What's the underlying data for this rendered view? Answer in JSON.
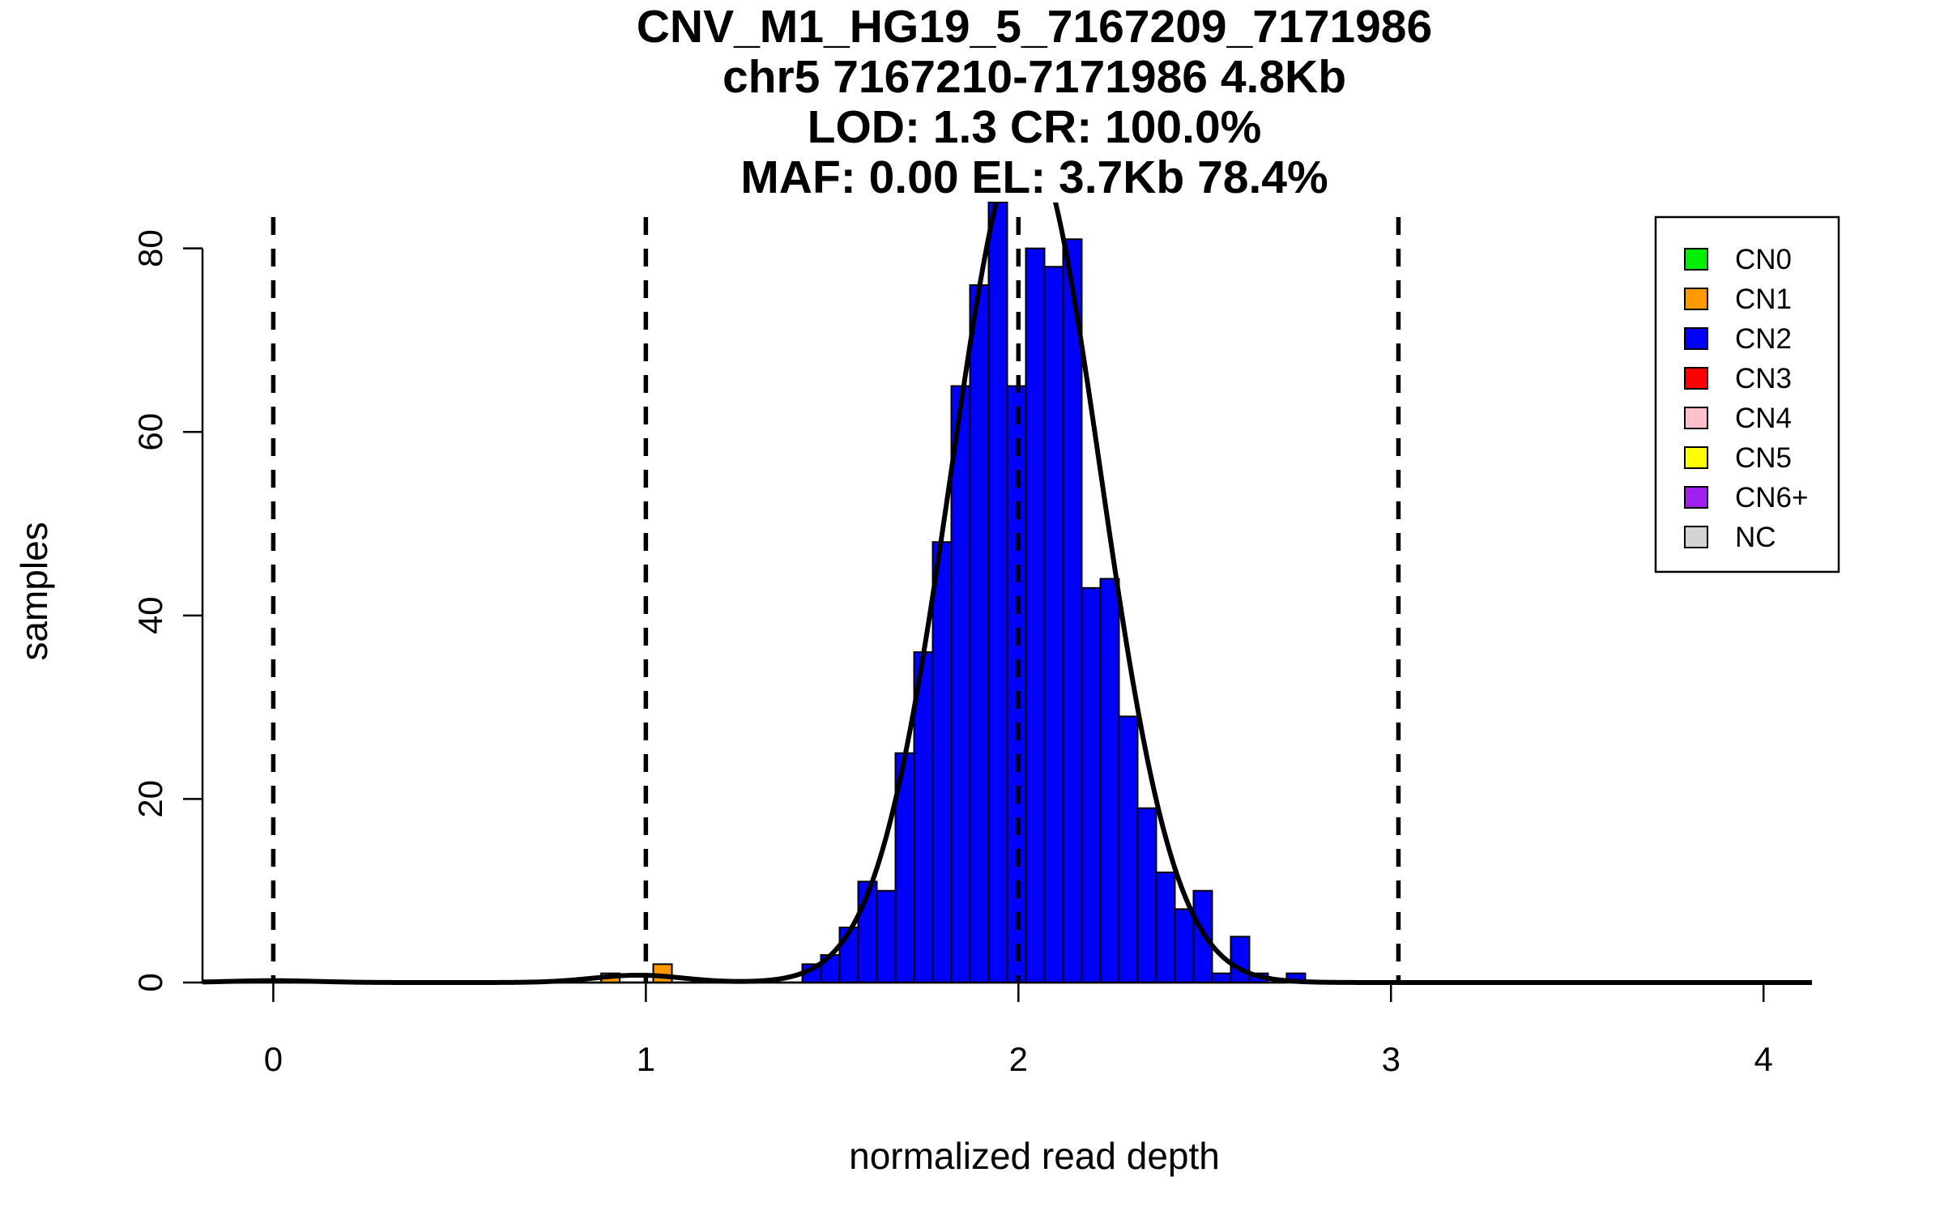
{
  "chart_data": {
    "type": "bar",
    "title_lines": [
      "CNV_M1_HG19_5_7167209_7171986",
      "chr5 7167210-7171986 4.8Kb",
      "LOD: 1.3 CR: 100.0%",
      "MAF: 0.00 EL: 3.7Kb 78.4%"
    ],
    "xlabel": "normalized read depth",
    "ylabel": "samples",
    "xlim": [
      -0.19,
      4.13
    ],
    "ylim": [
      0,
      85
    ],
    "xticks": [
      0,
      1,
      2,
      3,
      4
    ],
    "xtick_labels": [
      "0",
      "1",
      "2",
      "3",
      "4"
    ],
    "yticks": [
      0,
      20,
      40,
      60,
      80
    ],
    "ytick_labels": [
      "0",
      "20",
      "40",
      "60",
      "80"
    ],
    "bin_width": 0.05,
    "bins": [
      {
        "x0": 0.88,
        "count": 1,
        "cn": "CN1"
      },
      {
        "x0": 1.02,
        "count": 2,
        "cn": "CN1"
      },
      {
        "x0": 1.42,
        "count": 2,
        "cn": "CN2"
      },
      {
        "x0": 1.47,
        "count": 3,
        "cn": "CN2"
      },
      {
        "x0": 1.52,
        "count": 6,
        "cn": "CN2"
      },
      {
        "x0": 1.57,
        "count": 11,
        "cn": "CN2"
      },
      {
        "x0": 1.62,
        "count": 10,
        "cn": "CN2"
      },
      {
        "x0": 1.67,
        "count": 25,
        "cn": "CN2"
      },
      {
        "x0": 1.72,
        "count": 36,
        "cn": "CN2"
      },
      {
        "x0": 1.77,
        "count": 48,
        "cn": "CN2"
      },
      {
        "x0": 1.82,
        "count": 65,
        "cn": "CN2"
      },
      {
        "x0": 1.87,
        "count": 76,
        "cn": "CN2"
      },
      {
        "x0": 1.92,
        "count": 85,
        "cn": "CN2"
      },
      {
        "x0": 1.97,
        "count": 65,
        "cn": "CN2"
      },
      {
        "x0": 2.02,
        "count": 80,
        "cn": "CN2"
      },
      {
        "x0": 2.07,
        "count": 78,
        "cn": "CN2"
      },
      {
        "x0": 2.12,
        "count": 81,
        "cn": "CN2"
      },
      {
        "x0": 2.17,
        "count": 43,
        "cn": "CN2"
      },
      {
        "x0": 2.22,
        "count": 44,
        "cn": "CN2"
      },
      {
        "x0": 2.27,
        "count": 29,
        "cn": "CN2"
      },
      {
        "x0": 2.32,
        "count": 19,
        "cn": "CN2"
      },
      {
        "x0": 2.37,
        "count": 12,
        "cn": "CN2"
      },
      {
        "x0": 2.42,
        "count": 8,
        "cn": "CN2"
      },
      {
        "x0": 2.47,
        "count": 10,
        "cn": "CN2"
      },
      {
        "x0": 2.52,
        "count": 1,
        "cn": "CN2"
      },
      {
        "x0": 2.57,
        "count": 5,
        "cn": "CN2"
      },
      {
        "x0": 2.62,
        "count": 1,
        "cn": "CN2"
      },
      {
        "x0": 2.72,
        "count": 1,
        "cn": "CN2"
      }
    ],
    "baseline_segments": [
      [
        -0.19,
        0.23
      ],
      [
        0.48,
        2.72
      ],
      [
        3.0,
        3.93
      ]
    ],
    "dashed_lines_x": [
      0.0,
      1.0,
      2.0,
      3.02
    ],
    "fit_curve": {
      "components": [
        {
          "mean": 0.0,
          "sd": 0.12,
          "peak": 0.2
        },
        {
          "mean": 0.98,
          "sd": 0.12,
          "peak": 0.8
        },
        {
          "mean": 2.02,
          "sd": 0.2,
          "peak": 92
        }
      ]
    },
    "legend": {
      "position": "top-right",
      "items": [
        {
          "label": "CN0",
          "color": "#00ee00"
        },
        {
          "label": "CN1",
          "color": "#ff9900"
        },
        {
          "label": "CN2",
          "color": "#0000ff"
        },
        {
          "label": "CN3",
          "color": "#ff0000"
        },
        {
          "label": "CN4",
          "color": "#ffc0cb"
        },
        {
          "label": "CN5",
          "color": "#ffff00"
        },
        {
          "label": "CN6+",
          "color": "#a020f0"
        },
        {
          "label": "NC",
          "color": "#d3d3d3"
        }
      ]
    }
  }
}
